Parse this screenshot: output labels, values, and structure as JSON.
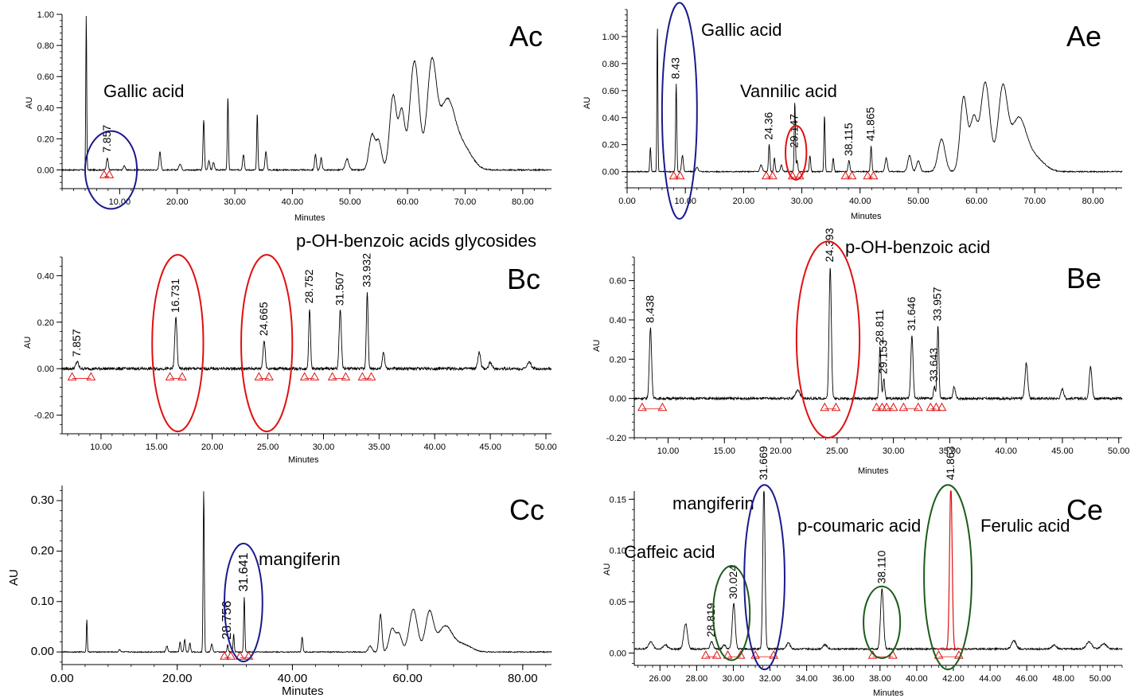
{
  "chart_data": [
    {
      "type": "line",
      "panel": "Ac",
      "xlabel": "Minutes",
      "ylabel": "AU",
      "xlim": [
        0,
        85
      ],
      "ylim": [
        -0.12,
        1.0
      ],
      "xticks": [
        10,
        20,
        30,
        40,
        50,
        60,
        70,
        80
      ],
      "xtick_labels": [
        "10.00",
        "20.00",
        "30.00",
        "40.00",
        "50.00",
        "60.00",
        "70.00",
        "80.00"
      ],
      "yticks": [
        0,
        0.2,
        0.4,
        0.6,
        0.8,
        1.0
      ],
      "ytick_labels": [
        "0.00",
        "0.20",
        "0.40",
        "0.60",
        "0.80",
        "1.00"
      ],
      "baseline": 0.0,
      "noise": 0.004,
      "peaks": [
        [
          4.2,
          1.0,
          0.08
        ],
        [
          7.857,
          0.08,
          0.15
        ],
        [
          10.8,
          0.03,
          0.15
        ],
        [
          17.0,
          0.12,
          0.15
        ],
        [
          20.5,
          0.04,
          0.2
        ],
        [
          24.6,
          0.32,
          0.12
        ],
        [
          25.5,
          0.06,
          0.15
        ],
        [
          26.3,
          0.05,
          0.15
        ],
        [
          28.8,
          0.47,
          0.1
        ],
        [
          31.5,
          0.1,
          0.15
        ],
        [
          33.9,
          0.36,
          0.1
        ],
        [
          35.4,
          0.12,
          0.15
        ],
        [
          44.0,
          0.1,
          0.15
        ],
        [
          45.0,
          0.08,
          0.15
        ],
        [
          49.5,
          0.07,
          0.3
        ],
        [
          53.8,
          0.22,
          0.5
        ],
        [
          55.0,
          0.18,
          0.5
        ],
        [
          57.5,
          0.48,
          0.6
        ],
        [
          59.0,
          0.36,
          0.5
        ],
        [
          61.2,
          0.7,
          0.8
        ],
        [
          64.2,
          0.66,
          0.8
        ],
        [
          66.8,
          0.42,
          1.3
        ],
        [
          69.5,
          0.15,
          1.6
        ]
      ],
      "peak_labels": [
        "7.857"
      ],
      "peak_label_x": [
        7.857
      ],
      "peak_label_y": [
        0.08
      ],
      "markers": [
        7.3,
        8.2
      ],
      "marker_y": [
        -0.03,
        -0.03
      ],
      "annotations": [
        "Gallic acid"
      ],
      "ellipses": [
        {
          "cx": 8.5,
          "cy": 0.0,
          "rx": 4.5,
          "ry": 0.25,
          "color": "#1a1a8c"
        }
      ],
      "panel_label": "Ac"
    },
    {
      "type": "line",
      "panel": "Ae",
      "xlabel": "Minutes",
      "ylabel": "AU",
      "xlim": [
        0,
        85
      ],
      "ylim": [
        -0.12,
        1.2
      ],
      "xticks": [
        0,
        10,
        20,
        30,
        40,
        50,
        60,
        70,
        80
      ],
      "xtick_labels": [
        "0.00",
        "10.00",
        "20.00",
        "30.00",
        "40.00",
        "50.00",
        "60.00",
        "70.00",
        "80.00"
      ],
      "yticks": [
        0,
        0.2,
        0.4,
        0.6,
        0.8,
        1.0
      ],
      "ytick_labels": [
        "0.00",
        "0.20",
        "0.40",
        "0.60",
        "0.80",
        "1.00"
      ],
      "baseline": 0.0,
      "noise": 0.004,
      "peaks": [
        [
          4.0,
          0.18,
          0.1
        ],
        [
          5.2,
          1.1,
          0.08
        ],
        [
          8.43,
          0.65,
          0.1
        ],
        [
          9.5,
          0.12,
          0.15
        ],
        [
          12.0,
          0.03,
          0.2
        ],
        [
          23.0,
          0.05,
          0.2
        ],
        [
          24.4,
          0.2,
          0.12
        ],
        [
          25.3,
          0.1,
          0.12
        ],
        [
          26.5,
          0.05,
          0.15
        ],
        [
          28.8,
          0.52,
          0.1
        ],
        [
          29.2,
          0.08,
          0.12
        ],
        [
          31.4,
          0.12,
          0.12
        ],
        [
          33.9,
          0.42,
          0.1
        ],
        [
          35.4,
          0.1,
          0.12
        ],
        [
          38.1,
          0.08,
          0.15
        ],
        [
          41.9,
          0.19,
          0.12
        ],
        [
          44.5,
          0.1,
          0.2
        ],
        [
          48.5,
          0.12,
          0.3
        ],
        [
          50.0,
          0.08,
          0.3
        ],
        [
          54.0,
          0.24,
          0.6
        ],
        [
          57.8,
          0.55,
          0.6
        ],
        [
          59.5,
          0.38,
          0.6
        ],
        [
          61.5,
          0.66,
          0.8
        ],
        [
          64.5,
          0.6,
          0.8
        ],
        [
          67.2,
          0.38,
          1.3
        ],
        [
          70.0,
          0.1,
          1.6
        ]
      ],
      "peak_labels": [
        "8.43",
        "24.36",
        "29.147",
        "38.115",
        "41.865"
      ],
      "peak_label_x": [
        8.43,
        24.4,
        28.8,
        38.1,
        41.9
      ],
      "peak_label_y": [
        0.65,
        0.2,
        0.14,
        0.08,
        0.19
      ],
      "markers": [
        8.0,
        9.1,
        23.9,
        25.0,
        28.4,
        29.6,
        37.5,
        38.6,
        41.3,
        42.3
      ],
      "marker_y": [
        -0.03,
        -0.03,
        -0.03,
        -0.03,
        -0.03,
        -0.03,
        -0.03,
        -0.03,
        -0.03,
        -0.03
      ],
      "annotations": [
        "Gallic acid",
        "Vannilic acid"
      ],
      "ellipses": [
        {
          "cx": 9.0,
          "cy": 0.45,
          "rx": 3.0,
          "ry": 0.8,
          "color": "#1a1a8c"
        },
        {
          "cx": 29.0,
          "cy": 0.14,
          "rx": 1.8,
          "ry": 0.2,
          "color": "#e01010"
        }
      ],
      "panel_label": "Ae"
    },
    {
      "type": "line",
      "panel": "Bc",
      "xlabel": "Minutes",
      "ylabel": "AU",
      "xlim": [
        6.5,
        50.5
      ],
      "ylim": [
        -0.28,
        0.48
      ],
      "xticks": [
        10,
        15,
        20,
        25,
        30,
        35,
        40,
        45,
        50
      ],
      "xtick_labels": [
        "10.00",
        "15.00",
        "20.00",
        "25.00",
        "30.00",
        "35.00",
        "40.00",
        "45.00",
        "50.00"
      ],
      "yticks": [
        -0.2,
        0,
        0.2,
        0.4
      ],
      "ytick_labels": [
        "-0.20",
        "0.00",
        "0.20",
        "0.40"
      ],
      "baseline": 0.0,
      "noise": 0.006,
      "peaks": [
        [
          7.857,
          0.03,
          0.12
        ],
        [
          16.731,
          0.22,
          0.1
        ],
        [
          24.665,
          0.12,
          0.1
        ],
        [
          28.752,
          0.26,
          0.08
        ],
        [
          31.507,
          0.25,
          0.1
        ],
        [
          33.932,
          0.33,
          0.08
        ],
        [
          35.4,
          0.07,
          0.1
        ],
        [
          44.0,
          0.07,
          0.12
        ],
        [
          45.0,
          0.03,
          0.12
        ],
        [
          48.5,
          0.03,
          0.15
        ]
      ],
      "peak_labels": [
        "7.857",
        "16.731",
        "24.665",
        "28.752",
        "31.507",
        "33.932"
      ],
      "peak_label_x": [
        7.857,
        16.731,
        24.665,
        28.752,
        31.507,
        33.932
      ],
      "peak_label_y": [
        0.03,
        0.22,
        0.12,
        0.26,
        0.25,
        0.33
      ],
      "markers": [
        7.4,
        9.1,
        16.2,
        17.3,
        24.2,
        25.1,
        28.3,
        29.2,
        30.8,
        32.0,
        33.5,
        34.3
      ],
      "marker_y": [
        -0.035,
        -0.035,
        -0.035,
        -0.035,
        -0.035,
        -0.035,
        -0.035,
        -0.035,
        -0.035,
        -0.035,
        -0.035,
        -0.035
      ],
      "annotations": [
        "p-OH-benzoic acids glycosides"
      ],
      "ellipses": [
        {
          "cx": 16.9,
          "cy": 0.11,
          "rx": 2.3,
          "ry": 0.38,
          "color": "#e01010"
        },
        {
          "cx": 24.9,
          "cy": 0.11,
          "rx": 2.3,
          "ry": 0.38,
          "color": "#e01010"
        }
      ],
      "panel_label": "Bc"
    },
    {
      "type": "line",
      "panel": "Be",
      "xlabel": "Minutes",
      "ylabel": "AU",
      "xlim": [
        7.0,
        50.3
      ],
      "ylim": [
        -0.2,
        0.72
      ],
      "xticks": [
        10,
        15,
        20,
        25,
        30,
        35,
        40,
        45,
        50
      ],
      "xtick_labels": [
        "10.00",
        "15.00",
        "20.00",
        "25.00",
        "30.00",
        "35.00",
        "40.00",
        "45.00",
        "50.00"
      ],
      "yticks": [
        -0.2,
        0,
        0.2,
        0.4,
        0.6
      ],
      "ytick_labels": [
        "-0.20",
        "0.00",
        "0.20",
        "0.40",
        "0.60"
      ],
      "baseline": 0.0,
      "noise": 0.006,
      "peaks": [
        [
          8.438,
          0.36,
          0.1
        ],
        [
          21.5,
          0.04,
          0.2
        ],
        [
          24.393,
          0.67,
          0.1
        ],
        [
          28.811,
          0.26,
          0.08
        ],
        [
          29.153,
          0.1,
          0.08
        ],
        [
          31.646,
          0.32,
          0.1
        ],
        [
          33.643,
          0.06,
          0.08
        ],
        [
          33.957,
          0.37,
          0.08
        ],
        [
          35.4,
          0.06,
          0.1
        ],
        [
          41.8,
          0.18,
          0.12
        ],
        [
          45.0,
          0.05,
          0.12
        ],
        [
          47.5,
          0.16,
          0.12
        ]
      ],
      "peak_labels": [
        "8.438",
        "24.393",
        "28.811",
        "29.153",
        "31.646",
        "33.643",
        "33.957"
      ],
      "peak_label_x": [
        8.438,
        24.393,
        28.811,
        29.153,
        31.646,
        33.643,
        33.957
      ],
      "peak_label_y": [
        0.36,
        0.67,
        0.26,
        0.1,
        0.32,
        0.06,
        0.37
      ],
      "markers": [
        7.7,
        9.5,
        23.9,
        24.9,
        28.5,
        29.0,
        29.4,
        30.0,
        30.9,
        32.2,
        33.3,
        33.8,
        34.3
      ],
      "marker_y": [
        -0.045,
        -0.045,
        -0.045,
        -0.045,
        -0.045,
        -0.045,
        -0.045,
        -0.045,
        -0.045,
        -0.045,
        -0.045,
        -0.045,
        -0.045
      ],
      "annotations": [
        "p-OH-benzoic acid"
      ],
      "ellipses": [
        {
          "cx": 24.2,
          "cy": 0.3,
          "rx": 2.8,
          "ry": 0.5,
          "color": "#e01010"
        }
      ],
      "panel_label": "Be"
    },
    {
      "type": "line",
      "panel": "Cc",
      "xlabel": "Minutes",
      "ylabel": "AU",
      "xlim": [
        0,
        85
      ],
      "ylim": [
        -0.025,
        0.33
      ],
      "xticks": [
        0,
        20,
        40,
        60,
        80
      ],
      "xtick_labels": [
        "0.00",
        "20.00",
        "40.00",
        "60.00",
        "80.00"
      ],
      "yticks": [
        0,
        0.1,
        0.2,
        0.3
      ],
      "ytick_labels": [
        "0.00",
        "0.10",
        "0.20",
        "0.30"
      ],
      "baseline": 0.0,
      "noise": 0.001,
      "peaks": [
        [
          4.3,
          0.065,
          0.08
        ],
        [
          10.0,
          0.005,
          0.15
        ],
        [
          18.2,
          0.012,
          0.15
        ],
        [
          20.5,
          0.02,
          0.12
        ],
        [
          21.3,
          0.025,
          0.12
        ],
        [
          22.2,
          0.018,
          0.12
        ],
        [
          24.6,
          0.32,
          0.1
        ],
        [
          26.0,
          0.015,
          0.15
        ],
        [
          28.756,
          0.015,
          0.1
        ],
        [
          29.8,
          0.035,
          0.1
        ],
        [
          31.641,
          0.11,
          0.1
        ],
        [
          41.7,
          0.03,
          0.12
        ],
        [
          53.5,
          0.012,
          0.3
        ],
        [
          55.3,
          0.075,
          0.25
        ],
        [
          57.3,
          0.045,
          0.5
        ],
        [
          58.5,
          0.035,
          0.5
        ],
        [
          61.0,
          0.085,
          0.7
        ],
        [
          63.8,
          0.078,
          0.7
        ],
        [
          66.5,
          0.05,
          1.2
        ],
        [
          69.5,
          0.015,
          1.5
        ]
      ],
      "peak_labels": [
        "28.756",
        "31.641"
      ],
      "peak_label_x": [
        28.756,
        31.641
      ],
      "peak_label_y": [
        0.015,
        0.11
      ],
      "markers": [
        28.2,
        29.3,
        30.9,
        32.4
      ],
      "marker_y": [
        -0.008,
        -0.008,
        -0.008,
        -0.008
      ],
      "annotations": [
        "mangiferin"
      ],
      "ellipses": [
        {
          "cx": 31.5,
          "cy": 0.098,
          "rx": 3.3,
          "ry": 0.117,
          "color": "#1a1a8c"
        }
      ],
      "panel_label": "Cc"
    },
    {
      "type": "line",
      "panel": "Ce",
      "xlabel": "Minutes",
      "ylabel": "AU",
      "xlim": [
        24.6,
        51.2
      ],
      "ylim": [
        -0.012,
        0.158
      ],
      "xticks": [
        26,
        28,
        30,
        32,
        34,
        36,
        38,
        40,
        42,
        44,
        46,
        48,
        50
      ],
      "xtick_labels": [
        "26.00",
        "28.00",
        "30.00",
        "32.00",
        "34.00",
        "36.00",
        "38.00",
        "40.00",
        "42.00",
        "44.00",
        "46.00",
        "48.00",
        "50.00"
      ],
      "yticks": [
        0,
        0.05,
        0.1,
        0.15
      ],
      "ytick_labels": [
        "0.00",
        "0.05",
        "0.10",
        "0.15"
      ],
      "baseline": 0.004,
      "noise": 0.0008,
      "peaks": [
        [
          25.5,
          0.007,
          0.12
        ],
        [
          26.3,
          0.004,
          0.12
        ],
        [
          27.4,
          0.025,
          0.1
        ],
        [
          28.819,
          0.007,
          0.08
        ],
        [
          29.5,
          0.004,
          0.08
        ],
        [
          30.024,
          0.044,
          0.08
        ],
        [
          31.669,
          0.16,
          0.06
        ],
        [
          33.0,
          0.006,
          0.1
        ],
        [
          35.0,
          0.004,
          0.12
        ],
        [
          38.11,
          0.059,
          0.08
        ],
        [
          41.863,
          0.16,
          0.07
        ],
        [
          45.3,
          0.008,
          0.12
        ],
        [
          47.5,
          0.004,
          0.12
        ],
        [
          49.4,
          0.007,
          0.15
        ],
        [
          50.2,
          0.005,
          0.15
        ]
      ],
      "peak_labels": [
        "28.819",
        "30.024",
        "31.669",
        "38.110",
        "41.863"
      ],
      "peak_label_x": [
        28.819,
        30.024,
        31.669,
        38.11,
        41.863
      ],
      "peak_label_y": [
        0.011,
        0.048,
        0.164,
        0.063,
        0.164
      ],
      "markers": [
        28.5,
        29.1,
        29.7,
        30.4,
        31.2,
        32.2,
        37.6,
        38.7,
        41.2,
        42.3
      ],
      "marker_y": [
        -0.002,
        -0.002,
        -0.002,
        -0.002,
        -0.002,
        -0.002,
        -0.002,
        -0.002,
        -0.002,
        -0.002
      ],
      "red_peak_x": 41.863,
      "annotations": [
        "Caffeic acid",
        "mangiferin",
        "p-coumaric acid",
        "Ferulic acid"
      ],
      "ellipses": [
        {
          "cx": 29.9,
          "cy": 0.039,
          "rx": 1.0,
          "ry": 0.046,
          "color": "#1a5c1a"
        },
        {
          "cx": 31.7,
          "cy": 0.074,
          "rx": 1.1,
          "ry": 0.09,
          "color": "#1a1a8c"
        },
        {
          "cx": 38.1,
          "cy": 0.03,
          "rx": 1.0,
          "ry": 0.035,
          "color": "#1a5c1a"
        },
        {
          "cx": 41.7,
          "cy": 0.074,
          "rx": 1.3,
          "ry": 0.09,
          "color": "#1a5c1a"
        }
      ],
      "panel_label": "Ce"
    }
  ]
}
